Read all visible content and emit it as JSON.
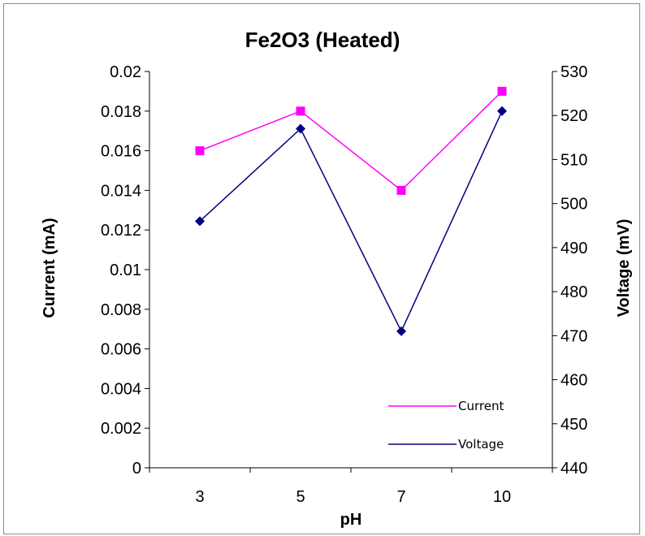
{
  "chart_data": {
    "type": "line",
    "title": "Fe2O3 (Heated)",
    "xlabel": "pH",
    "ylabel_left": "Current (mA)",
    "ylabel_right": "Voltage (mV)",
    "categories": [
      "3",
      "5",
      "7",
      "10"
    ],
    "y_left_range": [
      0,
      0.02
    ],
    "y_left_ticks": [
      "0",
      "0.002",
      "0.004",
      "0.006",
      "0.008",
      "0.01",
      "0.012",
      "0.014",
      "0.016",
      "0.018",
      "0.02"
    ],
    "y_right_range": [
      440,
      530
    ],
    "y_right_ticks": [
      "440",
      "450",
      "460",
      "470",
      "480",
      "490",
      "500",
      "510",
      "520",
      "530"
    ],
    "grid": false,
    "legend_position": "bottom-right",
    "series": [
      {
        "name": "Current",
        "axis": "left",
        "values": [
          0.016,
          0.018,
          0.014,
          0.019
        ],
        "color": "#ff00ff",
        "marker": "square"
      },
      {
        "name": "Voltage",
        "axis": "right",
        "values": [
          496,
          517,
          471,
          521
        ],
        "color": "#000080",
        "marker": "diamond"
      }
    ]
  }
}
